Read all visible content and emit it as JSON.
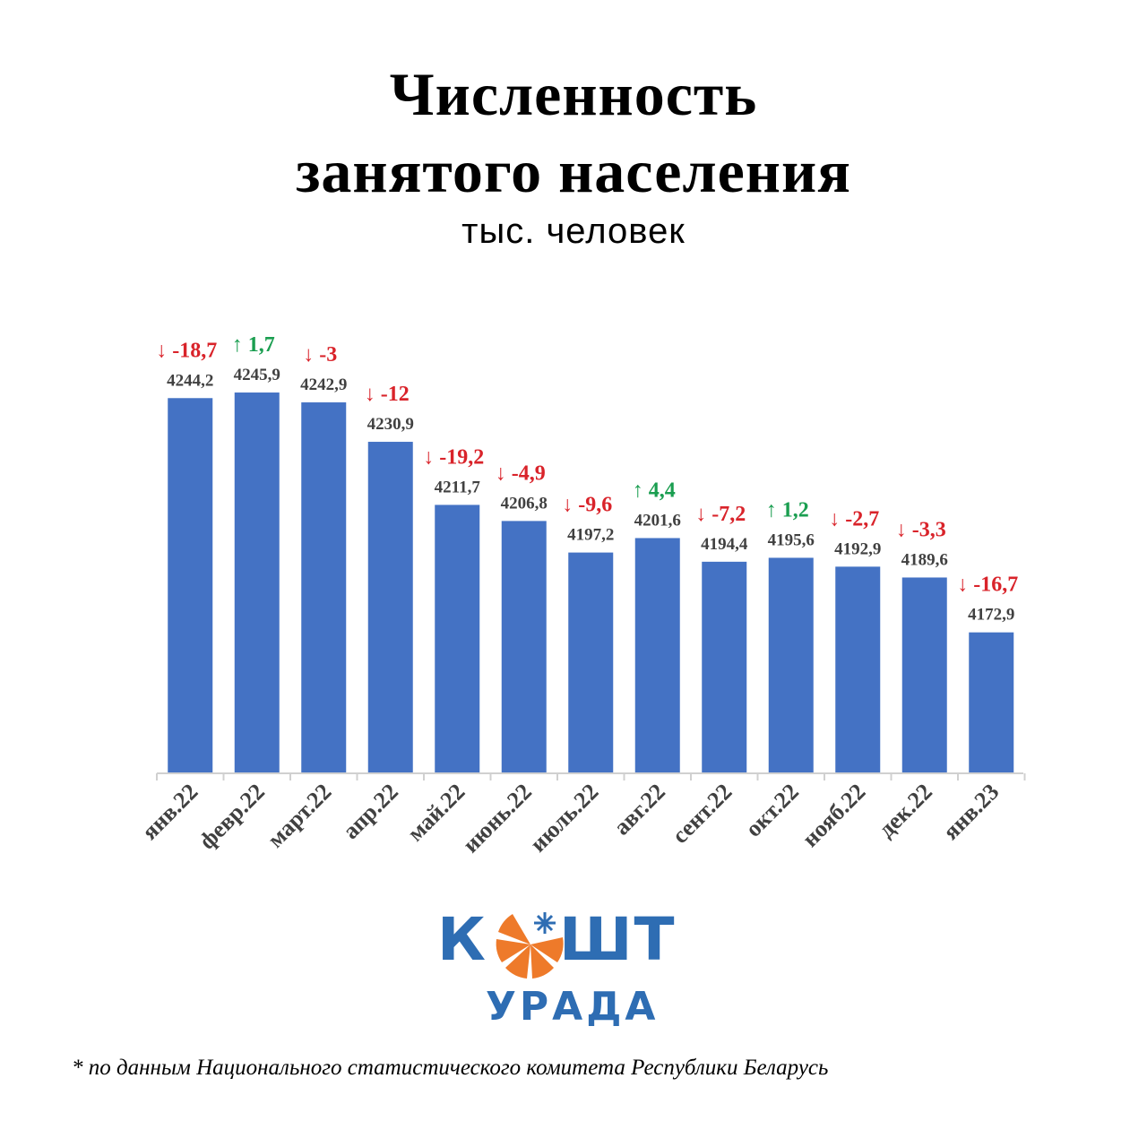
{
  "header": {
    "title_line1": "Численность",
    "title_line2": "занятого населения",
    "subtitle": "тыс. человек"
  },
  "chart_data": {
    "type": "bar",
    "title": "Численность занятого населения",
    "subtitle": "тыс. человек",
    "categories": [
      "янв.22",
      "февр.22",
      "март.22",
      "апр.22",
      "май.22",
      "июнь.22",
      "июль.22",
      "авг.22",
      "сент.22",
      "окт.22",
      "нояб.22",
      "дек.22",
      "янв.23"
    ],
    "values": [
      4244.2,
      4245.9,
      4242.9,
      4230.9,
      4211.7,
      4206.8,
      4197.2,
      4201.6,
      4194.4,
      4195.6,
      4192.9,
      4189.6,
      4172.9
    ],
    "value_labels": [
      "4244,2",
      "4245,9",
      "4242,9",
      "4230,9",
      "4211,7",
      "4206,8",
      "4197,2",
      "4201,6",
      "4194,4",
      "4195,6",
      "4192,9",
      "4189,6",
      "4172,9"
    ],
    "change_labels": [
      "↓ -18,7",
      "↑ 1,7",
      "↓ -3",
      "↓ -12",
      "↓ -19,2",
      "↓ -4,9",
      "↓ -9,6",
      "↑ 4,4",
      "↓ -7,2",
      "↑ 1,2",
      "↓ -2,7",
      "↓ -3,3",
      "↓ -16,7"
    ],
    "change_direction": [
      "down",
      "up",
      "down",
      "down",
      "down",
      "down",
      "down",
      "up",
      "down",
      "up",
      "down",
      "down",
      "down"
    ],
    "ylim": [
      4130,
      4250
    ],
    "grid": false,
    "legend": "none",
    "colors": {
      "bar": "#4472c4",
      "up": "#1a9e50",
      "down": "#d9232a",
      "value_label": "#404040"
    }
  },
  "logo": {
    "word_left": "К",
    "word_right": "ШТ",
    "sub": "УРАДА",
    "mark_icon": "orange-wheel-snowflake-icon"
  },
  "footnote": "* по данным Национального статистического комитета Республики Беларусь"
}
